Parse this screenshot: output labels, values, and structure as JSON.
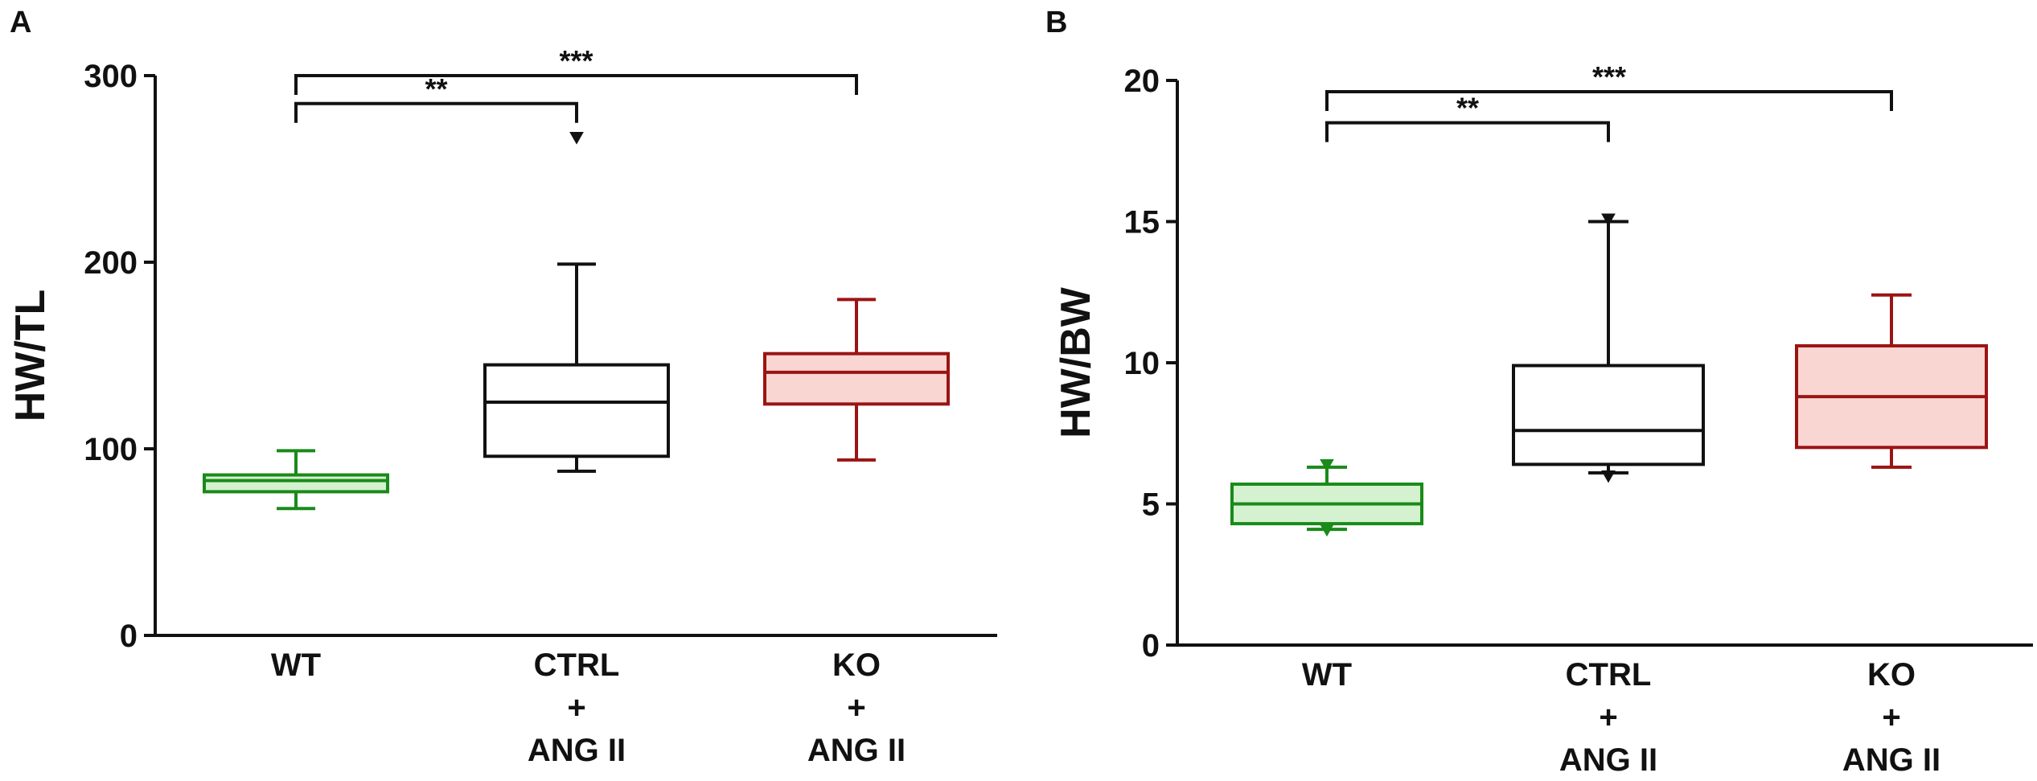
{
  "chart_data": [
    {
      "panel_label": "A",
      "type": "box",
      "title": "",
      "xlabel": "",
      "ylabel": "HW/TL",
      "ylim": [
        0,
        300
      ],
      "yticks": [
        0,
        100,
        200,
        300
      ],
      "grid": false,
      "categories": [
        {
          "lines": [
            "WT"
          ]
        },
        {
          "lines": [
            "CTRL",
            "+",
            "ANG II"
          ]
        },
        {
          "lines": [
            "KO",
            "+",
            "ANG II"
          ]
        }
      ],
      "boxes": [
        {
          "name": "WT",
          "min": 68,
          "q1": 77,
          "median": 83,
          "q3": 86,
          "max": 99,
          "outliers": [],
          "edge": "#1a8a1a",
          "fill": "#d4f2cf"
        },
        {
          "name": "CTRL + ANG II",
          "min": 88,
          "q1": 96,
          "median": 125,
          "q3": 145,
          "max": 199,
          "outliers": [
            267
          ],
          "edge": "#111111",
          "fill": "#ffffff"
        },
        {
          "name": "KO + ANG II",
          "min": 94,
          "q1": 124,
          "median": 141,
          "q3": 151,
          "max": 180,
          "outliers": [],
          "edge": "#9b1414",
          "fill": "#f9d6d1"
        }
      ],
      "significance": [
        {
          "from": 0,
          "to": 1,
          "label": "**",
          "level": 285
        },
        {
          "from": 0,
          "to": 2,
          "label": "***",
          "level": 300
        }
      ]
    },
    {
      "panel_label": "B",
      "type": "box",
      "title": "",
      "xlabel": "",
      "ylabel": "HW/BW",
      "ylim": [
        0,
        20
      ],
      "yticks": [
        0,
        5,
        10,
        15,
        20
      ],
      "grid": false,
      "categories": [
        {
          "lines": [
            "WT"
          ]
        },
        {
          "lines": [
            "CTRL",
            "+",
            "ANG II"
          ]
        },
        {
          "lines": [
            "KO",
            "+",
            "ANG II"
          ]
        }
      ],
      "boxes": [
        {
          "name": "WT",
          "min": 4.1,
          "q1": 4.3,
          "median": 5.0,
          "q3": 5.7,
          "max": 6.3,
          "outliers": [
            6.4,
            4.1
          ],
          "edge": "#1a8a1a",
          "fill": "#d4f2cf"
        },
        {
          "name": "CTRL + ANG II",
          "min": 6.1,
          "q1": 6.4,
          "median": 7.6,
          "q3": 9.9,
          "max": 15.0,
          "outliers": [
            15.1,
            6.0
          ],
          "edge": "#111111",
          "fill": "#ffffff"
        },
        {
          "name": "KO + ANG II",
          "min": 6.3,
          "q1": 7.0,
          "median": 8.8,
          "q3": 10.6,
          "max": 12.4,
          "outliers": [],
          "edge": "#9b1414",
          "fill": "#f9d6d1"
        }
      ],
      "significance": [
        {
          "from": 0,
          "to": 1,
          "label": "**",
          "level": 18.5
        },
        {
          "from": 0,
          "to": 2,
          "label": "***",
          "level": 19.6
        }
      ]
    }
  ]
}
